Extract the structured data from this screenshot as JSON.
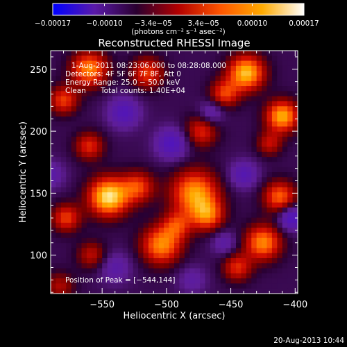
{
  "chart_data": {
    "type": "heatmap",
    "title": "Reconstructed RHESSI Image",
    "xlabel": "Heliocentric X (arcsec)",
    "ylabel": "Heliocentric Y (arcsec)",
    "xlim": [
      -590,
      -398
    ],
    "ylim": [
      69,
      265
    ],
    "xticks": [
      -550,
      -500,
      -450,
      -400
    ],
    "xtick_labels": [
      "−550",
      "−500",
      "−450",
      "−400"
    ],
    "yticks": [
      100,
      150,
      200,
      250
    ],
    "ytick_labels": [
      "100",
      "150",
      "200",
      "250"
    ],
    "colorbar": {
      "range": [
        -0.00017,
        0.00017
      ],
      "ticks": [
        -0.00017,
        -0.0001,
        -3.4e-05,
        3.4e-05,
        0.0001,
        0.00017
      ],
      "tick_labels": [
        "−0.00017",
        "−0.00010",
        "−3.4e−05",
        "3.4e−05",
        "0.00010",
        "0.00017"
      ],
      "unit_label": "(photons cm⁻² s⁻¹ asec⁻²)",
      "colors": [
        "#0000ff",
        "#5a1aa8",
        "#2a0030",
        "#b20000",
        "#ff5500",
        "#ffaa00",
        "#ffffff"
      ]
    },
    "sources": [
      {
        "x": -545,
        "y": 147,
        "amp": 1.0,
        "sigma": 11
      },
      {
        "x": -522,
        "y": 155,
        "amp": 0.55,
        "sigma": 9
      },
      {
        "x": -438,
        "y": 247,
        "amp": 0.9,
        "sigma": 10
      },
      {
        "x": -455,
        "y": 230,
        "amp": 0.55,
        "sigma": 8
      },
      {
        "x": -410,
        "y": 212,
        "amp": 0.85,
        "sigma": 9
      },
      {
        "x": -478,
        "y": 150,
        "amp": 0.8,
        "sigma": 13
      },
      {
        "x": -468,
        "y": 132,
        "amp": 0.6,
        "sigma": 9
      },
      {
        "x": -504,
        "y": 108,
        "amp": 0.75,
        "sigma": 11
      },
      {
        "x": -492,
        "y": 124,
        "amp": 0.45,
        "sigma": 8
      },
      {
        "x": -560,
        "y": 250,
        "amp": 0.75,
        "sigma": 10
      },
      {
        "x": -515,
        "y": 247,
        "amp": 0.55,
        "sigma": 9
      },
      {
        "x": -580,
        "y": 225,
        "amp": 0.55,
        "sigma": 8
      },
      {
        "x": -560,
        "y": 188,
        "amp": 0.5,
        "sigma": 8
      },
      {
        "x": -473,
        "y": 200,
        "amp": 0.5,
        "sigma": 9
      },
      {
        "x": -412,
        "y": 147,
        "amp": 0.65,
        "sigma": 9
      },
      {
        "x": -425,
        "y": 110,
        "amp": 0.75,
        "sigma": 10
      },
      {
        "x": -578,
        "y": 130,
        "amp": 0.55,
        "sigma": 8
      },
      {
        "x": -558,
        "y": 100,
        "amp": 0.4,
        "sigma": 8
      },
      {
        "x": -445,
        "y": 90,
        "amp": 0.5,
        "sigma": 8
      },
      {
        "x": -583,
        "y": 75,
        "amp": 0.35,
        "sigma": 8
      },
      {
        "x": -420,
        "y": 190,
        "amp": 0.4,
        "sigma": 7
      },
      {
        "x": -496,
        "y": 190,
        "amp": -0.5,
        "sigma": 9
      },
      {
        "x": -533,
        "y": 215,
        "amp": -0.45,
        "sigma": 9
      },
      {
        "x": -440,
        "y": 165,
        "amp": -0.4,
        "sigma": 8
      },
      {
        "x": -403,
        "y": 130,
        "amp": -0.55,
        "sigma": 7
      },
      {
        "x": -540,
        "y": 90,
        "amp": -0.3,
        "sigma": 9
      },
      {
        "x": -465,
        "y": 215,
        "amp": -0.35,
        "sigma": 7
      },
      {
        "x": -455,
        "y": 110,
        "amp": -0.3,
        "sigma": 7
      },
      {
        "x": -590,
        "y": 165,
        "amp": -0.3,
        "sigma": 8
      },
      {
        "x": -480,
        "y": 80,
        "amp": -0.25,
        "sigma": 8
      }
    ],
    "annotations": {
      "time_range": "1‑Aug‑2011 08:23:06.000 to 08:28:08.000",
      "detectors": "Detectors: 4F 5F 6F 7F 8F, Att 0",
      "energy": "Energy Range: 25.0 − 50.0 keV",
      "method": "Clean",
      "total_counts": "Total counts: 1.40E+04",
      "peak_position": "Position of Peak = [−544,144]"
    },
    "footer_date": "20‑Aug‑2013 10:44"
  }
}
